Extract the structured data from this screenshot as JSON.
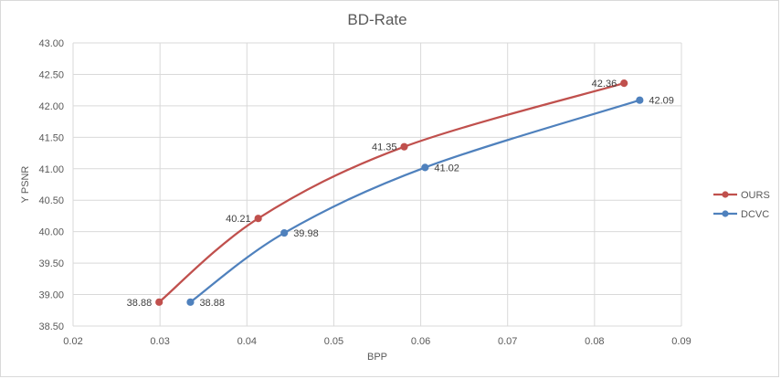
{
  "chart_data": {
    "type": "line",
    "title": "BD-Rate",
    "xlabel": "BPP",
    "ylabel": "Y PSNR",
    "xlim": [
      0.02,
      0.09
    ],
    "ylim": [
      38.5,
      43.0
    ],
    "x_ticks": [
      "0.02",
      "0.03",
      "0.04",
      "0.05",
      "0.06",
      "0.07",
      "0.08",
      "0.09"
    ],
    "y_ticks": [
      "38.50",
      "39.00",
      "39.50",
      "40.00",
      "40.50",
      "41.00",
      "41.50",
      "42.00",
      "42.50",
      "43.00"
    ],
    "grid": true,
    "legend_position": "right",
    "series": [
      {
        "name": "OURS",
        "color": "#c0504d",
        "x": [
          0.0299,
          0.0413,
          0.0581,
          0.0834
        ],
        "y": [
          38.88,
          40.21,
          41.35,
          42.36
        ],
        "labels": [
          "38.88",
          "40.21",
          "41.35",
          "42.36"
        ],
        "label_side": "left"
      },
      {
        "name": "DCVC",
        "color": "#4f81bd",
        "x": [
          0.0335,
          0.0443,
          0.0605,
          0.0852
        ],
        "y": [
          38.88,
          39.98,
          41.02,
          42.09
        ],
        "labels": [
          "38.88",
          "39.98",
          "41.02",
          "42.09"
        ],
        "label_side": "right"
      }
    ]
  }
}
